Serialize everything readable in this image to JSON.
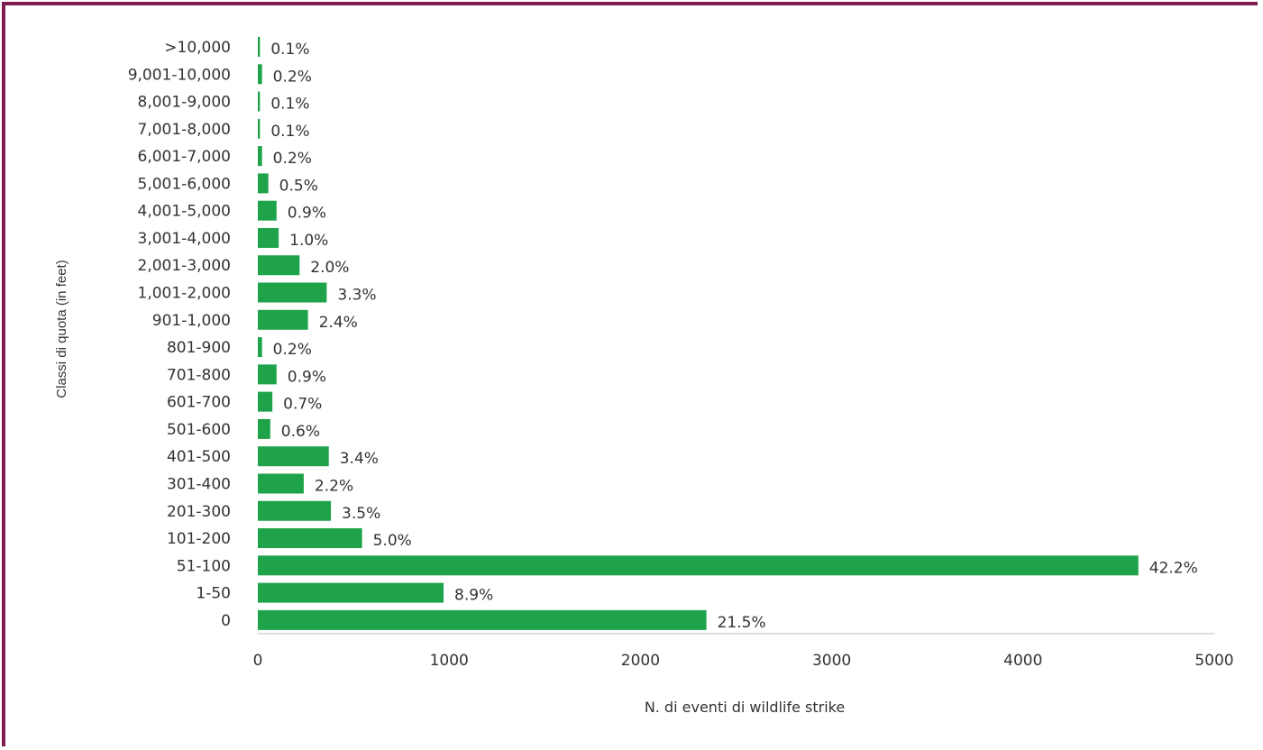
{
  "chart_data": {
    "type": "bar",
    "orientation": "horizontal",
    "title": "",
    "xlabel": "N. di eventi di wildlife strike",
    "ylabel": "Classi di quota (in feet)",
    "xlim": [
      0,
      5000
    ],
    "xticks": [
      0,
      1000,
      2000,
      3000,
      4000,
      5000
    ],
    "bar_color": "#1ea34a",
    "grid": false,
    "categories": [
      ">10,000",
      "9,001-10,000",
      "8,001-9,000",
      "7,001-8,000",
      "6,001-7,000",
      "5,001-6,000",
      "4,001-5,000",
      "3,001-4,000",
      "2,001-3,000",
      "1,001-2,000",
      "901-1,000",
      "801-900",
      "701-800",
      "601-700",
      "501-600",
      "401-500",
      "301-400",
      "201-300",
      "101-200",
      "51-100",
      "1-50",
      "0"
    ],
    "values": [
      11,
      22,
      11,
      11,
      22,
      55,
      98,
      109,
      218,
      360,
      262,
      22,
      98,
      76,
      65,
      371,
      240,
      382,
      545,
      4603,
      971,
      2345
    ],
    "labels": [
      "0.1%",
      "0.2%",
      "0.1%",
      "0.1%",
      "0.2%",
      "0.5%",
      "0.9%",
      "1.0%",
      "2.0%",
      "3.3%",
      "2.4%",
      "0.2%",
      "0.9%",
      "0.7%",
      "0.6%",
      "3.4%",
      "2.2%",
      "3.5%",
      "5.0%",
      "42.2%",
      "8.9%",
      "21.5%"
    ]
  }
}
